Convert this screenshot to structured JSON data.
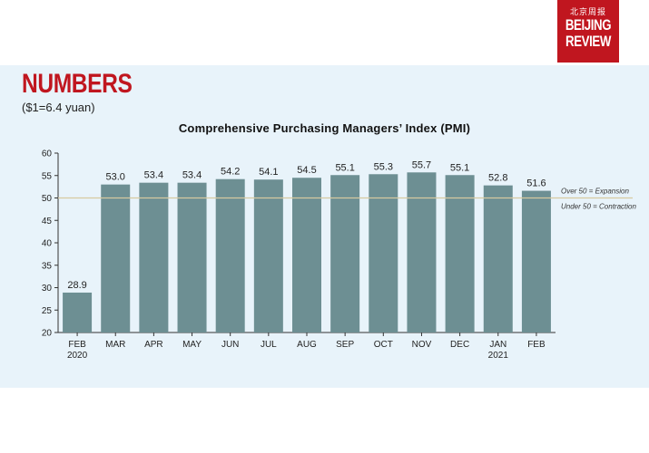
{
  "header": {
    "title": "NUMBERS",
    "subtitle": "($1=6.4 yuan)",
    "logo": {
      "cn_text": "北京周报",
      "line1": "BEIJING",
      "line2": "REVIEW",
      "color": "#c0161f"
    }
  },
  "colors": {
    "bar": "#6d8f93",
    "reference_line": "#d6c9a0",
    "panel_background": "#e8f3fa",
    "accent": "#c0161f"
  },
  "chart_data": {
    "type": "bar",
    "title": "Comprehensive Purchasing Managers’ Index (PMI)",
    "xlabel": "",
    "ylabel": "",
    "categories": [
      "FEB\n2020",
      "MAR",
      "APR",
      "MAY",
      "JUN",
      "JUL",
      "AUG",
      "SEP",
      "OCT",
      "NOV",
      "DEC",
      "JAN\n2021",
      "FEB"
    ],
    "values": [
      28.9,
      53.0,
      53.4,
      53.4,
      54.2,
      54.1,
      54.5,
      55.1,
      55.3,
      55.7,
      55.1,
      52.8,
      51.6
    ],
    "data_labels": [
      "28.9",
      "53.0",
      "53.4",
      "53.4",
      "54.2",
      "54.1",
      "54.5",
      "55.1",
      "55.3",
      "55.7",
      "55.1",
      "52.8",
      "51.6"
    ],
    "ylim": [
      20,
      60
    ],
    "yticks": [
      20,
      25,
      30,
      35,
      40,
      45,
      50,
      55,
      60
    ],
    "grid": false,
    "reference_line": {
      "value": 50,
      "label_above": "Over 50 = Expansion",
      "label_below": "Under 50 = Contraction"
    }
  }
}
